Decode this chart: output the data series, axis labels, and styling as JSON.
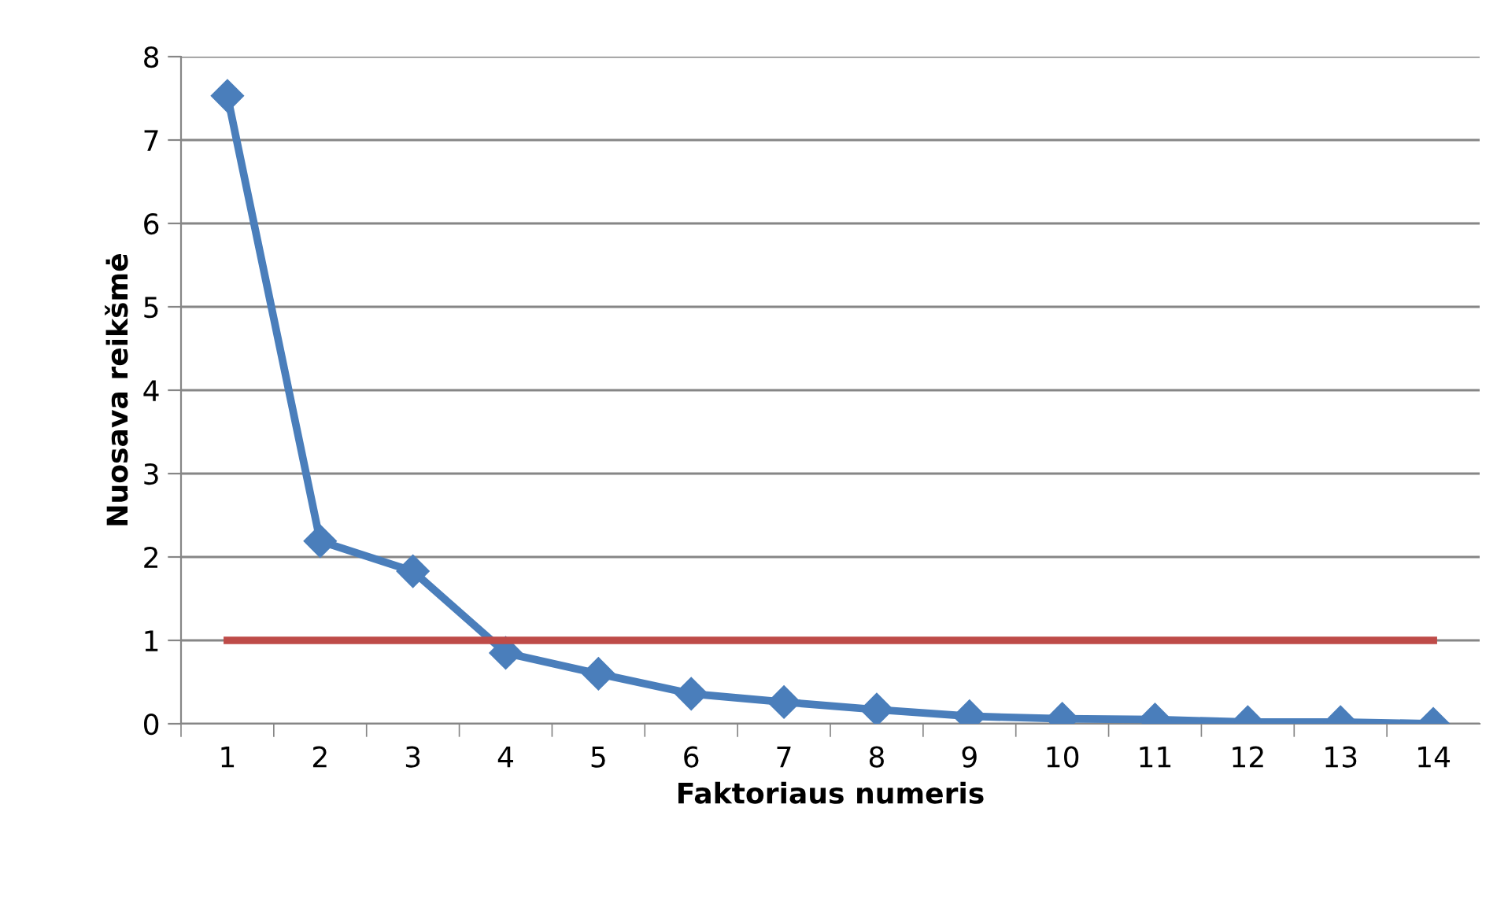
{
  "chart_data": {
    "type": "line",
    "xlabel": "Faktoriaus numeris",
    "ylabel": "Nuosava reikšmė",
    "categories": [
      "1",
      "2",
      "3",
      "4",
      "5",
      "6",
      "7",
      "8",
      "9",
      "10",
      "11",
      "12",
      "13",
      "14"
    ],
    "series": [
      {
        "color": "#4a7ebb",
        "marker": "diamond",
        "values": [
          7.53,
          2.19,
          1.83,
          0.85,
          0.6,
          0.36,
          0.26,
          0.17,
          0.09,
          0.06,
          0.05,
          0.02,
          0.02,
          0.0
        ]
      },
      {
        "color": "#be4b48",
        "marker": "none",
        "values": [
          1,
          1,
          1,
          1,
          1,
          1,
          1,
          1,
          1,
          1,
          1,
          1,
          1,
          1
        ]
      }
    ],
    "ylim": [
      0,
      8
    ],
    "yticks": [
      0,
      1,
      2,
      3,
      4,
      5,
      6,
      7,
      8
    ],
    "grid": "y",
    "line_style": "solid"
  }
}
